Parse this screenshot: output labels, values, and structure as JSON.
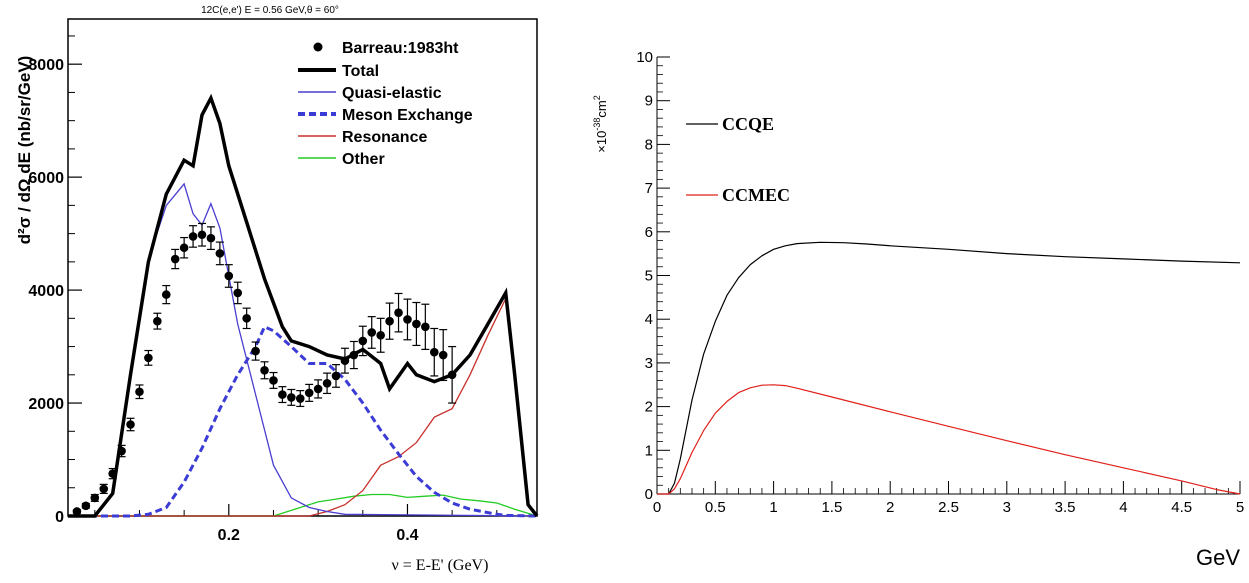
{
  "chart_data": [
    {
      "type": "line",
      "title": "12C(e,e') E = 0.56 GeV,θ = 60°",
      "xlabel": "ν = E-E' (GeV)",
      "ylabel": "d²σ / dΩ dE (nb/sr/GeV)",
      "xlim": [
        0.02,
        0.545
      ],
      "ylim": [
        0,
        8800
      ],
      "xticks": [
        0.2,
        0.4
      ],
      "xtick_labels": [
        "0.2",
        "0.4"
      ],
      "yticks": [
        0,
        2000,
        4000,
        6000,
        8000
      ],
      "ytick_labels": [
        "0",
        "2000",
        "4000",
        "6000",
        "8000"
      ],
      "legend": "top-right",
      "legend_entries": [
        "Barreau:1983ht",
        "Total",
        "Quasi-elastic",
        "Meson Exchange",
        "Resonance",
        "Other"
      ],
      "colors": {
        "data": "#000000",
        "total": "#000000",
        "qe": "#4a3fd0",
        "mec": "#3b3bd6",
        "res": "#c8302b",
        "other": "#22cc22"
      },
      "series": [
        {
          "name": "Total",
          "style": "solid-thick",
          "x": [
            0.02,
            0.05,
            0.07,
            0.09,
            0.11,
            0.13,
            0.15,
            0.16,
            0.17,
            0.18,
            0.19,
            0.2,
            0.22,
            0.24,
            0.26,
            0.27,
            0.29,
            0.31,
            0.33,
            0.35,
            0.37,
            0.38,
            0.4,
            0.41,
            0.43,
            0.45,
            0.47,
            0.49,
            0.51,
            0.52,
            0.535,
            0.545
          ],
          "y": [
            0,
            0,
            400,
            2500,
            4500,
            5700,
            6300,
            6200,
            7100,
            7400,
            6950,
            6200,
            5200,
            4200,
            3350,
            3100,
            3000,
            2850,
            2780,
            2950,
            2700,
            2250,
            2700,
            2500,
            2380,
            2500,
            2850,
            3400,
            3950,
            2500,
            200,
            0
          ]
        },
        {
          "name": "Quasi-elastic",
          "style": "solid-thin",
          "x": [
            0.02,
            0.05,
            0.07,
            0.09,
            0.11,
            0.13,
            0.15,
            0.16,
            0.17,
            0.18,
            0.19,
            0.21,
            0.23,
            0.25,
            0.27,
            0.29,
            0.31,
            0.33,
            0.545
          ],
          "y": [
            0,
            0,
            400,
            2500,
            4550,
            5500,
            5880,
            5350,
            5150,
            5530,
            5100,
            3400,
            2150,
            900,
            320,
            150,
            80,
            30,
            0
          ]
        },
        {
          "name": "Meson Exchange",
          "style": "dashed-thick",
          "x": [
            0.02,
            0.09,
            0.11,
            0.13,
            0.15,
            0.17,
            0.19,
            0.21,
            0.23,
            0.24,
            0.25,
            0.27,
            0.29,
            0.31,
            0.33,
            0.35,
            0.37,
            0.39,
            0.41,
            0.43,
            0.45,
            0.47,
            0.5,
            0.51,
            0.545
          ],
          "y": [
            0,
            0,
            30,
            150,
            600,
            1200,
            1900,
            2500,
            3000,
            3350,
            3280,
            3000,
            2700,
            2700,
            2420,
            2000,
            1520,
            1100,
            700,
            420,
            230,
            120,
            30,
            10,
            0
          ]
        },
        {
          "name": "Resonance",
          "style": "solid-thin",
          "x": [
            0.02,
            0.29,
            0.31,
            0.33,
            0.35,
            0.37,
            0.39,
            0.41,
            0.43,
            0.45,
            0.47,
            0.49,
            0.51,
            0.52,
            0.535,
            0.545
          ],
          "y": [
            0,
            0,
            80,
            200,
            450,
            900,
            1050,
            1300,
            1750,
            1900,
            2500,
            3200,
            3850,
            2500,
            200,
            0
          ]
        },
        {
          "name": "Other",
          "style": "solid-thin",
          "x": [
            0.02,
            0.25,
            0.28,
            0.3,
            0.32,
            0.34,
            0.36,
            0.38,
            0.4,
            0.42,
            0.44,
            0.46,
            0.48,
            0.5,
            0.52,
            0.545
          ],
          "y": [
            0,
            0,
            150,
            250,
            300,
            350,
            380,
            380,
            330,
            350,
            370,
            300,
            270,
            230,
            120,
            0
          ]
        }
      ],
      "points": {
        "name": "Barreau:1983ht",
        "x": [
          0.03,
          0.04,
          0.05,
          0.06,
          0.07,
          0.08,
          0.09,
          0.1,
          0.11,
          0.12,
          0.13,
          0.14,
          0.15,
          0.16,
          0.17,
          0.18,
          0.19,
          0.2,
          0.21,
          0.22,
          0.23,
          0.24,
          0.25,
          0.26,
          0.27,
          0.28,
          0.29,
          0.3,
          0.31,
          0.32,
          0.33,
          0.34,
          0.35,
          0.36,
          0.37,
          0.38,
          0.39,
          0.4,
          0.41,
          0.42,
          0.43,
          0.44,
          0.45
        ],
        "y": [
          80,
          180,
          320,
          480,
          750,
          1150,
          1620,
          2200,
          2800,
          3450,
          3920,
          4550,
          4750,
          4950,
          4980,
          4920,
          4650,
          4250,
          3950,
          3500,
          2920,
          2580,
          2400,
          2150,
          2100,
          2080,
          2180,
          2250,
          2350,
          2480,
          2750,
          2850,
          3100,
          3250,
          3200,
          3450,
          3600,
          3480,
          3400,
          3350,
          2900,
          2850,
          2500
        ],
        "err": [
          30,
          40,
          60,
          80,
          90,
          100,
          110,
          120,
          130,
          140,
          160,
          170,
          180,
          190,
          200,
          200,
          200,
          200,
          190,
          180,
          160,
          150,
          140,
          140,
          140,
          140,
          150,
          160,
          180,
          200,
          220,
          240,
          260,
          280,
          300,
          320,
          340,
          360,
          380,
          400,
          420,
          450,
          500
        ]
      }
    },
    {
      "type": "line",
      "xlabel": "GeV",
      "ylabel_prefix": "×10",
      "ylabel_exp": "-38",
      "ylabel_unit": "cm",
      "ylabel_unit_exp": "2",
      "xlim": [
        0,
        5
      ],
      "ylim": [
        0,
        10
      ],
      "xticks": [
        0,
        0.5,
        1,
        1.5,
        2,
        2.5,
        3,
        3.5,
        4,
        4.5,
        5
      ],
      "xtick_labels": [
        "0",
        "0.5",
        "1",
        "1.5",
        "2",
        "2.5",
        "3",
        "3.5",
        "4",
        "4.5",
        "5"
      ],
      "yticks": [
        0,
        1,
        2,
        3,
        4,
        5,
        6,
        7,
        8,
        9,
        10
      ],
      "ytick_labels": [
        "0",
        "1",
        "2",
        "3",
        "4",
        "5",
        "6",
        "7",
        "8",
        "9",
        "10"
      ],
      "legend": "top-left",
      "colors": {
        "CCQE": "#000000",
        "CCMEC": "#e0201b"
      },
      "series": [
        {
          "name": "CCQE",
          "x": [
            0,
            0.1,
            0.15,
            0.2,
            0.3,
            0.4,
            0.5,
            0.6,
            0.7,
            0.8,
            0.9,
            1.0,
            1.1,
            1.2,
            1.4,
            1.6,
            1.8,
            2.0,
            2.5,
            3.0,
            3.5,
            4.0,
            4.5,
            5.0
          ],
          "y": [
            0,
            0,
            0.25,
            0.8,
            2.15,
            3.2,
            3.95,
            4.55,
            4.95,
            5.25,
            5.45,
            5.6,
            5.68,
            5.73,
            5.76,
            5.75,
            5.72,
            5.68,
            5.6,
            5.5,
            5.43,
            5.38,
            5.33,
            5.29
          ]
        },
        {
          "name": "CCMEC",
          "x": [
            0,
            0.1,
            0.15,
            0.2,
            0.3,
            0.4,
            0.5,
            0.6,
            0.7,
            0.8,
            0.9,
            1.0,
            1.1,
            1.2,
            1.5,
            2.0,
            2.5,
            3.0,
            3.5,
            4.0,
            4.5,
            4.8,
            5.0
          ],
          "y": [
            0,
            0,
            0.12,
            0.35,
            0.95,
            1.45,
            1.85,
            2.12,
            2.32,
            2.43,
            2.49,
            2.5,
            2.48,
            2.42,
            2.22,
            1.88,
            1.55,
            1.22,
            0.9,
            0.6,
            0.3,
            0.1,
            0
          ]
        }
      ]
    }
  ]
}
